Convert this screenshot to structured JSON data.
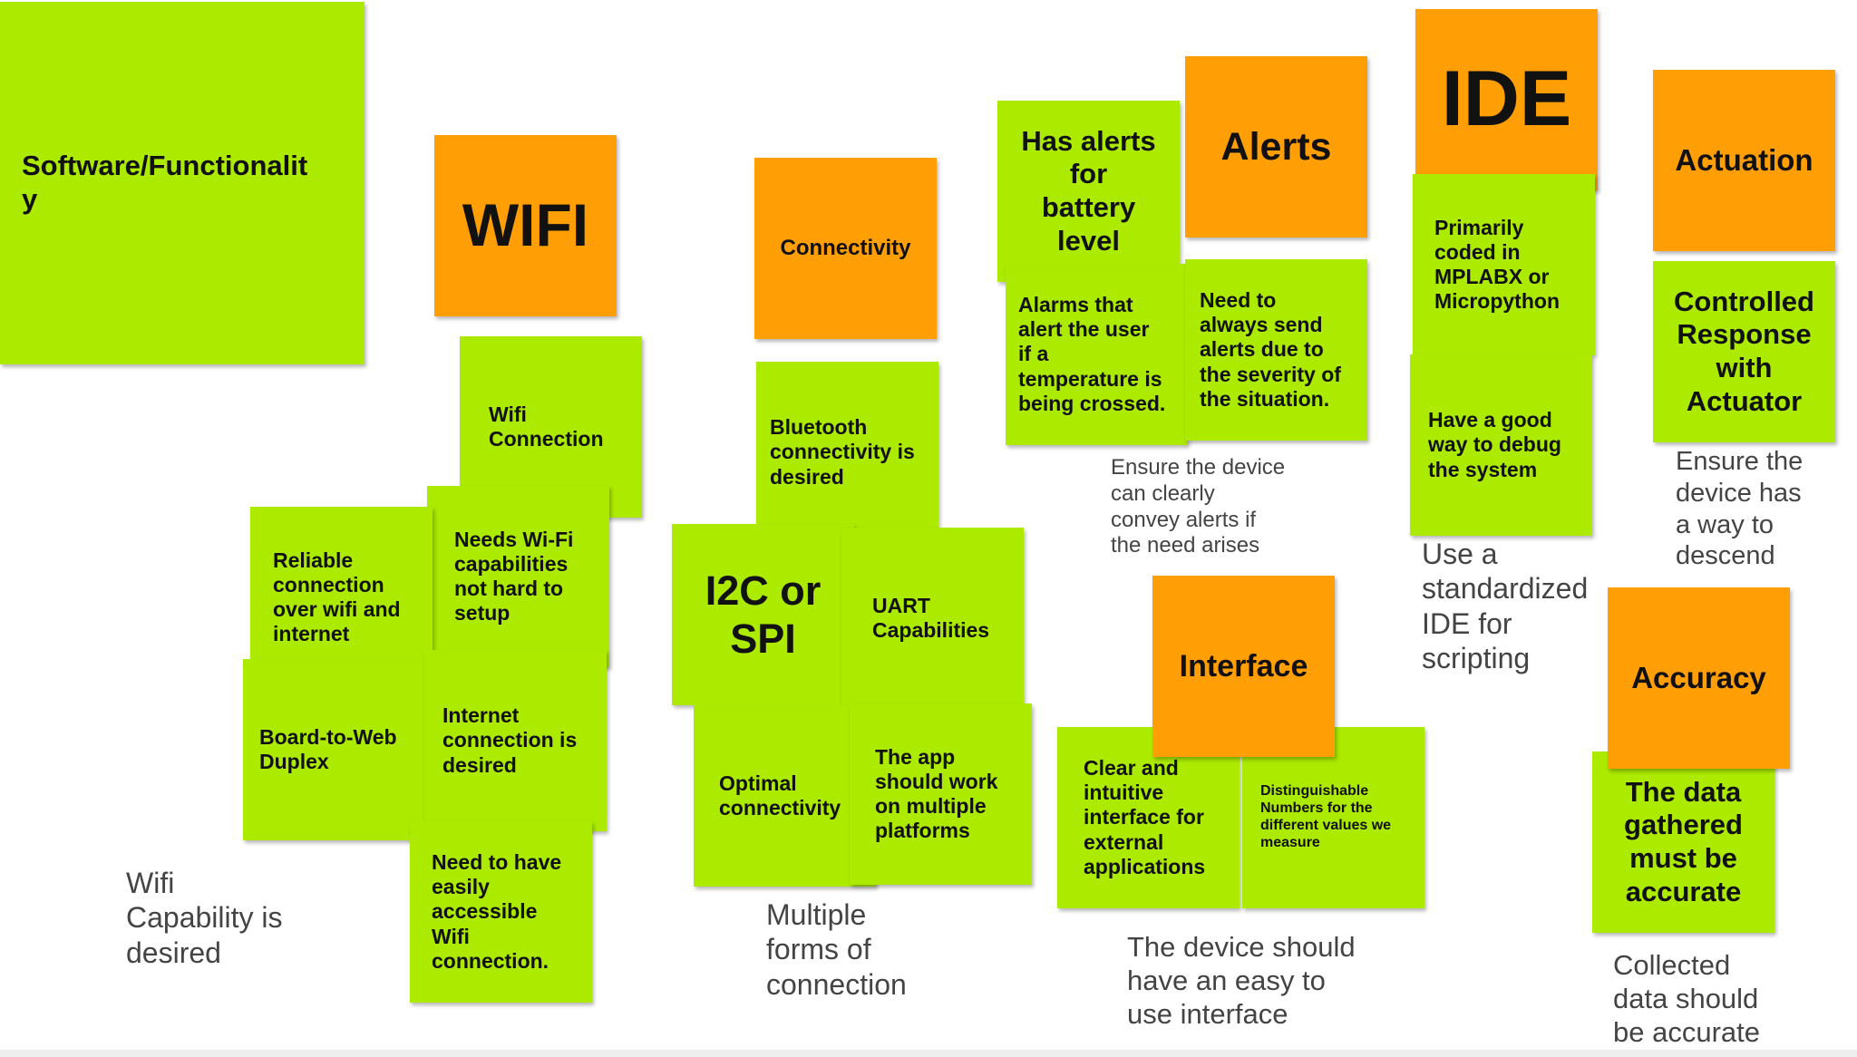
{
  "colors": {
    "green": "#acea00",
    "orange": "#ff9e05",
    "caption": "#444444"
  },
  "notes": {
    "software": "Software/Functionalit\ny",
    "wifi": "WIFI",
    "wifi_connection": "Wifi\nConnection",
    "needs_wifi": "Needs Wi-Fi\ncapabilities\nnot hard to\nsetup",
    "reliable": "Reliable\nconnection\nover wifi and\ninternet",
    "board_web": "Board-to-Web\nDuplex",
    "internet_desired": "Internet\nconnection is\ndesired",
    "accessible_wifi": "Need to have\neasily\naccessible\nWifi\nconnection.",
    "connectivity": "Connectivity",
    "bluetooth": "Bluetooth\nconnectivity is\ndesired",
    "i2c": "I2C or\nSPI",
    "uart": "UART\nCapabilities",
    "optimal": "Optimal\nconnectivity",
    "app_platforms": "The app\nshould work\non multiple\nplatforms",
    "battery_alerts": "Has alerts\nfor\nbattery\nlevel",
    "alerts": "Alerts",
    "alarms_temp": "Alarms that\nalert the user\nif a\ntemperature is\nbeing crossed.",
    "send_alerts": "Need to\nalways send\nalerts due to\nthe severity of\nthe situation.",
    "ide": "IDE",
    "mplabx": "Primarily\ncoded in\nMPLABX or\nMicropython",
    "debug": "Have a good\nway to debug\nthe system",
    "actuation": "Actuation",
    "controlled": "Controlled\nResponse\nwith\nActuator",
    "interface": "Interface",
    "clear_interface": "Clear and\nintuitive\ninterface for\nexternal\napplications",
    "distinguishable": "Distinguishable\nNumbers for the\ndifferent values we\nmeasure",
    "accuracy": "Accuracy",
    "data_accurate": "The data\ngathered\nmust be\naccurate"
  },
  "captions": {
    "wifi": "Wifi\nCapability is\ndesired",
    "connection": "Multiple\nforms of\nconnection",
    "alerts": "Ensure the device\ncan clearly\nconvey alerts if\nthe need arises",
    "ide": "Use a\nstandardized\nIDE for\nscripting",
    "actuation": "Ensure the\ndevice has\na way to\ndescend",
    "interface": "The device should\nhave an easy to\nuse interface",
    "accuracy": "Collected\ndata should\nbe accurate"
  }
}
